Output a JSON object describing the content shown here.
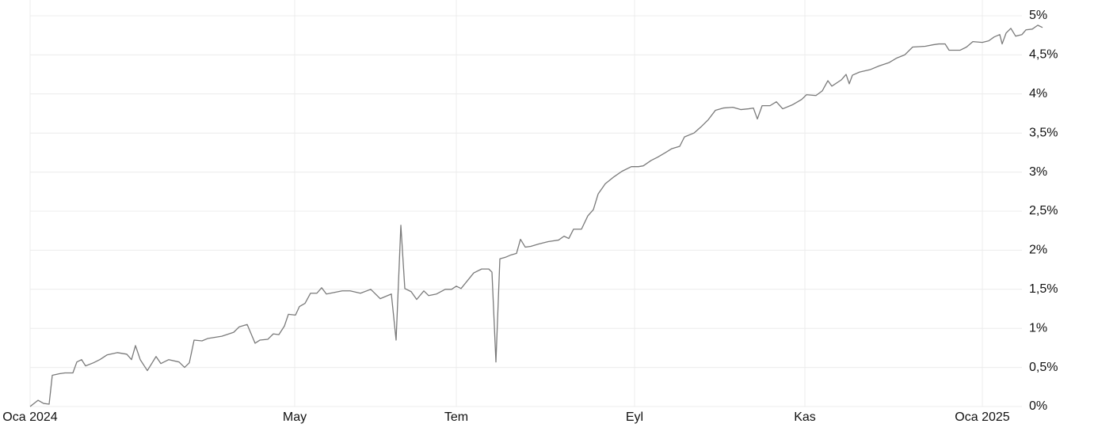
{
  "chart_data": {
    "type": "line",
    "color": "#7a7a7a",
    "grid": true,
    "x": [
      0,
      2.5,
      4.25,
      6,
      7,
      9.25,
      11,
      13.5,
      14.75,
      16.25,
      17.5,
      20,
      22,
      24.25,
      27.5,
      30.5,
      32,
      33.25,
      34.75,
      37,
      39.75,
      41.25,
      43.75,
      47,
      48.75,
      50.25,
      51.75,
      54.25,
      56,
      60.5,
      64.25,
      66,
      68.5,
      71,
      72.5,
      75,
      76.75,
      78.5,
      80.25,
      81.5,
      83.75,
      85,
      86.75,
      88.5,
      90.5,
      92,
      93.5,
      96,
      98.5,
      101,
      104.25,
      107.5,
      110.5,
      114,
      115.5,
      117,
      118.25,
      120.25,
      122,
      124.25,
      125.75,
      128.25,
      131,
      133,
      134.5,
      136,
      138,
      140,
      142.5,
      144.75,
      145.75,
      147,
      148.25,
      150,
      151.75,
      153.5,
      154.75,
      156.25,
      158,
      160.5,
      163.5,
      166.75,
      168.5,
      170,
      171.5,
      174,
      176,
      177.75,
      179.25,
      181.5,
      184.25,
      186.75,
      189.75,
      192,
      193.5,
      196,
      198,
      200.5,
      202.5,
      205,
      206.5,
      209.5,
      211.75,
      214,
      216.25,
      218.75,
      221.75,
      224.25,
      226.75,
      228.25,
      229.5,
      231,
      233.5,
      235.5,
      237.5,
      240.5,
      243.5,
      245,
      248,
      250,
      251.75,
      253,
      256,
      257.5,
      258.5,
      259.5,
      261.75,
      265,
      268,
      271,
      273.5,
      276,
      278.5,
      282.5,
      285,
      286.75,
      288.75,
      290,
      293.5,
      295.5,
      297.5,
      300.5,
      302.5,
      304.25,
      306,
      306.75,
      308,
      309.5,
      311,
      313,
      314.25,
      316.25,
      318,
      319.5
    ],
    "values": [
      0,
      0.08,
      0.04,
      0.03,
      0.4,
      0.42,
      0.43,
      0.43,
      0.57,
      0.6,
      0.52,
      0.56,
      0.6,
      0.66,
      0.69,
      0.67,
      0.6,
      0.78,
      0.6,
      0.46,
      0.64,
      0.55,
      0.6,
      0.57,
      0.5,
      0.56,
      0.85,
      0.84,
      0.87,
      0.9,
      0.95,
      1.02,
      1.05,
      0.81,
      0.85,
      0.86,
      0.93,
      0.92,
      1.03,
      1.18,
      1.17,
      1.28,
      1.32,
      1.45,
      1.45,
      1.52,
      1.44,
      1.46,
      1.48,
      1.48,
      1.45,
      1.5,
      1.38,
      1.44,
      0.85,
      2.32,
      1.51,
      1.47,
      1.37,
      1.48,
      1.42,
      1.44,
      1.5,
      1.5,
      1.54,
      1.51,
      1.61,
      1.71,
      1.76,
      1.76,
      1.72,
      0.57,
      1.89,
      1.91,
      1.94,
      1.96,
      2.14,
      2.04,
      2.05,
      2.08,
      2.11,
      2.13,
      2.18,
      2.15,
      2.27,
      2.27,
      2.44,
      2.52,
      2.72,
      2.85,
      2.94,
      3.01,
      3.07,
      3.07,
      3.08,
      3.15,
      3.19,
      3.25,
      3.3,
      3.33,
      3.45,
      3.5,
      3.58,
      3.67,
      3.79,
      3.82,
      3.83,
      3.8,
      3.81,
      3.82,
      3.68,
      3.85,
      3.85,
      3.9,
      3.81,
      3.86,
      3.93,
      3.99,
      3.98,
      4.04,
      4.17,
      4.1,
      4.18,
      4.25,
      4.13,
      4.24,
      4.28,
      4.31,
      4.36,
      4.4,
      4.46,
      4.5,
      4.6,
      4.61,
      4.63,
      4.64,
      4.64,
      4.56,
      4.56,
      4.6,
      4.67,
      4.66,
      4.68,
      4.73,
      4.76,
      4.64,
      4.78,
      4.84,
      4.74,
      4.76,
      4.82,
      4.83,
      4.88,
      4.85
    ],
    "xlim": [
      0,
      320
    ],
    "xticks": [
      {
        "value": 0,
        "label": "Oca 2024"
      },
      {
        "value": 83.5,
        "label": "May"
      },
      {
        "value": 134.5,
        "label": "Tem"
      },
      {
        "value": 190.75,
        "label": "Eyl"
      },
      {
        "value": 244.5,
        "label": "Kas"
      },
      {
        "value": 300.5,
        "label": "Oca 2025"
      }
    ],
    "ylim": [
      0,
      5
    ],
    "yticks": [
      {
        "value": 0,
        "label": "0%"
      },
      {
        "value": 0.5,
        "label": "0,5%"
      },
      {
        "value": 1,
        "label": "1%"
      },
      {
        "value": 1.5,
        "label": "1,5%"
      },
      {
        "value": 2,
        "label": "2%"
      },
      {
        "value": 2.5,
        "label": "2,5%"
      },
      {
        "value": 3,
        "label": "3%"
      },
      {
        "value": 3.5,
        "label": "3,5%"
      },
      {
        "value": 4,
        "label": "4%"
      },
      {
        "value": 4.5,
        "label": "4,5%"
      },
      {
        "value": 5,
        "label": "5%"
      }
    ]
  }
}
